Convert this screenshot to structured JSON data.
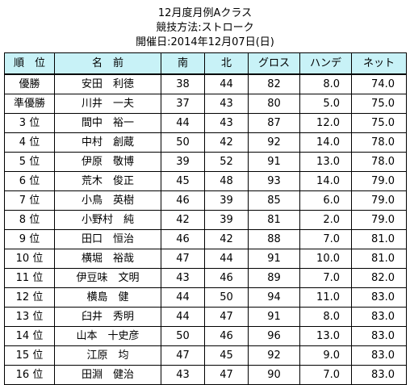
{
  "title": {
    "line1": "12月度月例Aクラス",
    "line2": "競技方法:ストローク",
    "line3": "開催日:2014年12月07日(日)"
  },
  "headers": [
    "順　位",
    "名　前",
    "南",
    "北",
    "グロス",
    "ハンデ",
    "ネット"
  ],
  "rows": [
    {
      "rank": "優勝",
      "name": "安田　利徳",
      "south": "38",
      "north": "44",
      "gross": "82",
      "handicap": "8.0",
      "net": "74.0"
    },
    {
      "rank": "準優勝",
      "name": "川井　一夫",
      "south": "37",
      "north": "43",
      "gross": "80",
      "handicap": "5.0",
      "net": "75.0"
    },
    {
      "rank": "3 位",
      "name": "間中　裕一",
      "south": "44",
      "north": "43",
      "gross": "87",
      "handicap": "12.0",
      "net": "75.0"
    },
    {
      "rank": "4 位",
      "name": "中村　創蔵",
      "south": "50",
      "north": "42",
      "gross": "92",
      "handicap": "14.0",
      "net": "78.0"
    },
    {
      "rank": "5 位",
      "name": "伊原　敬博",
      "south": "39",
      "north": "52",
      "gross": "91",
      "handicap": "13.0",
      "net": "78.0"
    },
    {
      "rank": "6 位",
      "name": "荒木　俊正",
      "south": "45",
      "north": "48",
      "gross": "93",
      "handicap": "14.0",
      "net": "79.0"
    },
    {
      "rank": "7 位",
      "name": "小鳥　英樹",
      "south": "46",
      "north": "39",
      "gross": "85",
      "handicap": "6.0",
      "net": "79.0"
    },
    {
      "rank": "8 位",
      "name": "小野村　純",
      "south": "42",
      "north": "39",
      "gross": "81",
      "handicap": "2.0",
      "net": "79.0"
    },
    {
      "rank": "9 位",
      "name": "田口　恒治",
      "south": "46",
      "north": "42",
      "gross": "88",
      "handicap": "7.0",
      "net": "81.0"
    },
    {
      "rank": "10 位",
      "name": "横堀　裕哉",
      "south": "47",
      "north": "44",
      "gross": "91",
      "handicap": "10.0",
      "net": "81.0"
    },
    {
      "rank": "11 位",
      "name": "伊豆味　文明",
      "south": "43",
      "north": "46",
      "gross": "89",
      "handicap": "7.0",
      "net": "82.0"
    },
    {
      "rank": "12 位",
      "name": "横島　健",
      "south": "44",
      "north": "50",
      "gross": "94",
      "handicap": "11.0",
      "net": "83.0"
    },
    {
      "rank": "13 位",
      "name": "臼井　秀明",
      "south": "44",
      "north": "47",
      "gross": "91",
      "handicap": "8.0",
      "net": "83.0"
    },
    {
      "rank": "14 位",
      "name": "山本　十史彦",
      "south": "50",
      "north": "46",
      "gross": "96",
      "handicap": "13.0",
      "net": "83.0"
    },
    {
      "rank": "15 位",
      "name": "江原　均",
      "south": "47",
      "north": "45",
      "gross": "92",
      "handicap": "9.0",
      "net": "83.0"
    },
    {
      "rank": "16 位",
      "name": "田淵　健治",
      "south": "43",
      "north": "47",
      "gross": "90",
      "handicap": "7.0",
      "net": "83.0"
    }
  ],
  "colors": {
    "header_bg": "#c8f2f7",
    "border": "#000000"
  }
}
